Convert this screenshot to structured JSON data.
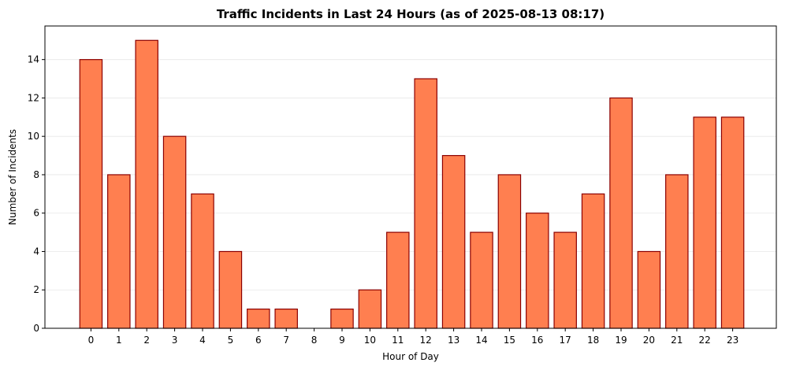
{
  "chart_data": {
    "type": "bar",
    "title": "Traffic Incidents in Last 24 Hours (as of 2025-08-13 08:17)",
    "xlabel": "Hour of Day",
    "ylabel": "Number of Incidents",
    "categories": [
      "0",
      "1",
      "2",
      "3",
      "4",
      "5",
      "6",
      "7",
      "8",
      "9",
      "10",
      "11",
      "12",
      "13",
      "14",
      "15",
      "16",
      "17",
      "18",
      "19",
      "20",
      "21",
      "22",
      "23"
    ],
    "values": [
      14,
      8,
      15,
      10,
      7,
      4,
      1,
      1,
      0,
      1,
      2,
      5,
      13,
      9,
      5,
      8,
      6,
      5,
      7,
      12,
      4,
      8,
      11,
      11
    ],
    "ylim": [
      0,
      15.75
    ],
    "yticks": [
      0,
      2,
      4,
      6,
      8,
      10,
      12,
      14
    ],
    "grid": "y",
    "bar_color": "#ff7f50",
    "edge_color": "#8b0000"
  }
}
